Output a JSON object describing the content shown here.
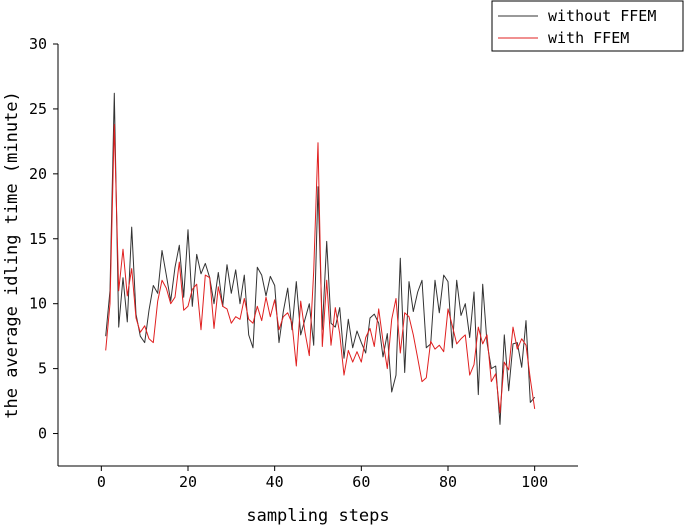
{
  "chart_data": {
    "type": "line",
    "xlabel": "sampling steps",
    "ylabel": "the average idling time (minute)",
    "xlim": [
      -10,
      110
    ],
    "ylim": [
      -2.5,
      30
    ],
    "xticks": [
      0,
      20,
      40,
      60,
      80,
      100
    ],
    "yticks": [
      0,
      5,
      10,
      15,
      20,
      25,
      30
    ],
    "grid": false,
    "legend_position": "top-right",
    "series": [
      {
        "name": "without FFEM",
        "color": "#333333",
        "x": [
          1,
          2,
          3,
          4,
          5,
          6,
          7,
          8,
          9,
          10,
          11,
          12,
          13,
          14,
          15,
          16,
          17,
          18,
          19,
          20,
          21,
          22,
          23,
          24,
          25,
          26,
          27,
          28,
          29,
          30,
          31,
          32,
          33,
          34,
          35,
          36,
          37,
          38,
          39,
          40,
          41,
          42,
          43,
          44,
          45,
          46,
          47,
          48,
          49,
          50,
          51,
          52,
          53,
          54,
          55,
          56,
          57,
          58,
          59,
          60,
          61,
          62,
          63,
          64,
          65,
          66,
          67,
          68,
          69,
          70,
          71,
          72,
          73,
          74,
          75,
          76,
          77,
          78,
          79,
          80,
          81,
          82,
          83,
          84,
          85,
          86,
          87,
          88,
          89,
          90,
          91,
          92,
          93,
          94,
          95,
          96,
          97,
          98,
          99,
          100
        ],
        "values": [
          7.5,
          11.0,
          26.2,
          8.2,
          12.0,
          8.6,
          15.9,
          9.2,
          7.5,
          7.0,
          9.5,
          11.4,
          10.8,
          14.1,
          12.2,
          10.2,
          12.8,
          14.5,
          10.5,
          15.7,
          9.8,
          13.8,
          12.3,
          13.1,
          12.0,
          10.0,
          12.4,
          9.8,
          13.0,
          10.8,
          12.6,
          10.0,
          12.2,
          7.6,
          6.6,
          12.8,
          12.2,
          10.6,
          12.1,
          11.4,
          7.0,
          9.4,
          11.2,
          8.0,
          11.7,
          7.6,
          8.8,
          10.0,
          6.8,
          19.0,
          8.0,
          14.8,
          8.5,
          8.2,
          9.7,
          5.8,
          8.8,
          6.6,
          7.9,
          7.0,
          6.2,
          8.9,
          9.2,
          8.5,
          5.9,
          7.7,
          3.2,
          4.5,
          13.5,
          4.7,
          11.7,
          9.4,
          10.9,
          11.8,
          6.6,
          6.9,
          11.8,
          9.3,
          12.2,
          11.7,
          6.6,
          11.8,
          9.1,
          10.0,
          7.4,
          10.9,
          3.0,
          11.5,
          7.0,
          5.0,
          5.2,
          0.7,
          7.6,
          3.3,
          6.9,
          7.0,
          5.1,
          8.7,
          2.4,
          2.8
        ]
      },
      {
        "name": "with FFEM",
        "color": "#e02020",
        "x": [
          1,
          2,
          3,
          4,
          5,
          6,
          7,
          8,
          9,
          10,
          11,
          12,
          13,
          14,
          15,
          16,
          17,
          18,
          19,
          20,
          21,
          22,
          23,
          24,
          25,
          26,
          27,
          28,
          29,
          30,
          31,
          32,
          33,
          34,
          35,
          36,
          37,
          38,
          39,
          40,
          41,
          42,
          43,
          44,
          45,
          46,
          47,
          48,
          49,
          50,
          51,
          52,
          53,
          54,
          55,
          56,
          57,
          58,
          59,
          60,
          61,
          62,
          63,
          64,
          65,
          66,
          67,
          68,
          69,
          70,
          71,
          72,
          73,
          74,
          75,
          76,
          77,
          78,
          79,
          80,
          81,
          82,
          83,
          84,
          85,
          86,
          87,
          88,
          89,
          90,
          91,
          92,
          93,
          94,
          95,
          96,
          97,
          98,
          99,
          100
        ],
        "values": [
          6.4,
          10.0,
          23.8,
          11.0,
          14.2,
          10.6,
          12.7,
          8.9,
          7.8,
          8.3,
          7.3,
          7.0,
          10.2,
          11.8,
          11.2,
          10.0,
          10.5,
          13.2,
          9.5,
          9.8,
          11.1,
          11.5,
          8.0,
          12.2,
          12.0,
          8.1,
          11.3,
          9.8,
          9.6,
          8.5,
          9.0,
          8.8,
          10.4,
          8.8,
          8.5,
          9.8,
          8.7,
          10.5,
          9.0,
          10.3,
          8.0,
          9.0,
          9.3,
          8.5,
          5.2,
          10.2,
          7.8,
          6.0,
          12.5,
          22.4,
          6.7,
          11.8,
          6.8,
          9.7,
          7.7,
          4.5,
          6.4,
          5.5,
          6.3,
          5.5,
          7.4,
          8.1,
          6.7,
          9.6,
          7.1,
          5.0,
          8.8,
          10.4,
          6.2,
          9.3,
          9.0,
          7.6,
          5.8,
          4.0,
          4.3,
          7.1,
          6.5,
          6.8,
          6.3,
          9.6,
          8.3,
          6.9,
          7.3,
          7.6,
          4.5,
          5.3,
          8.2,
          6.9,
          7.6,
          4.0,
          4.6,
          1.6,
          5.5,
          4.9,
          8.2,
          6.5,
          7.3,
          6.8,
          4.2,
          1.9
        ]
      }
    ]
  }
}
